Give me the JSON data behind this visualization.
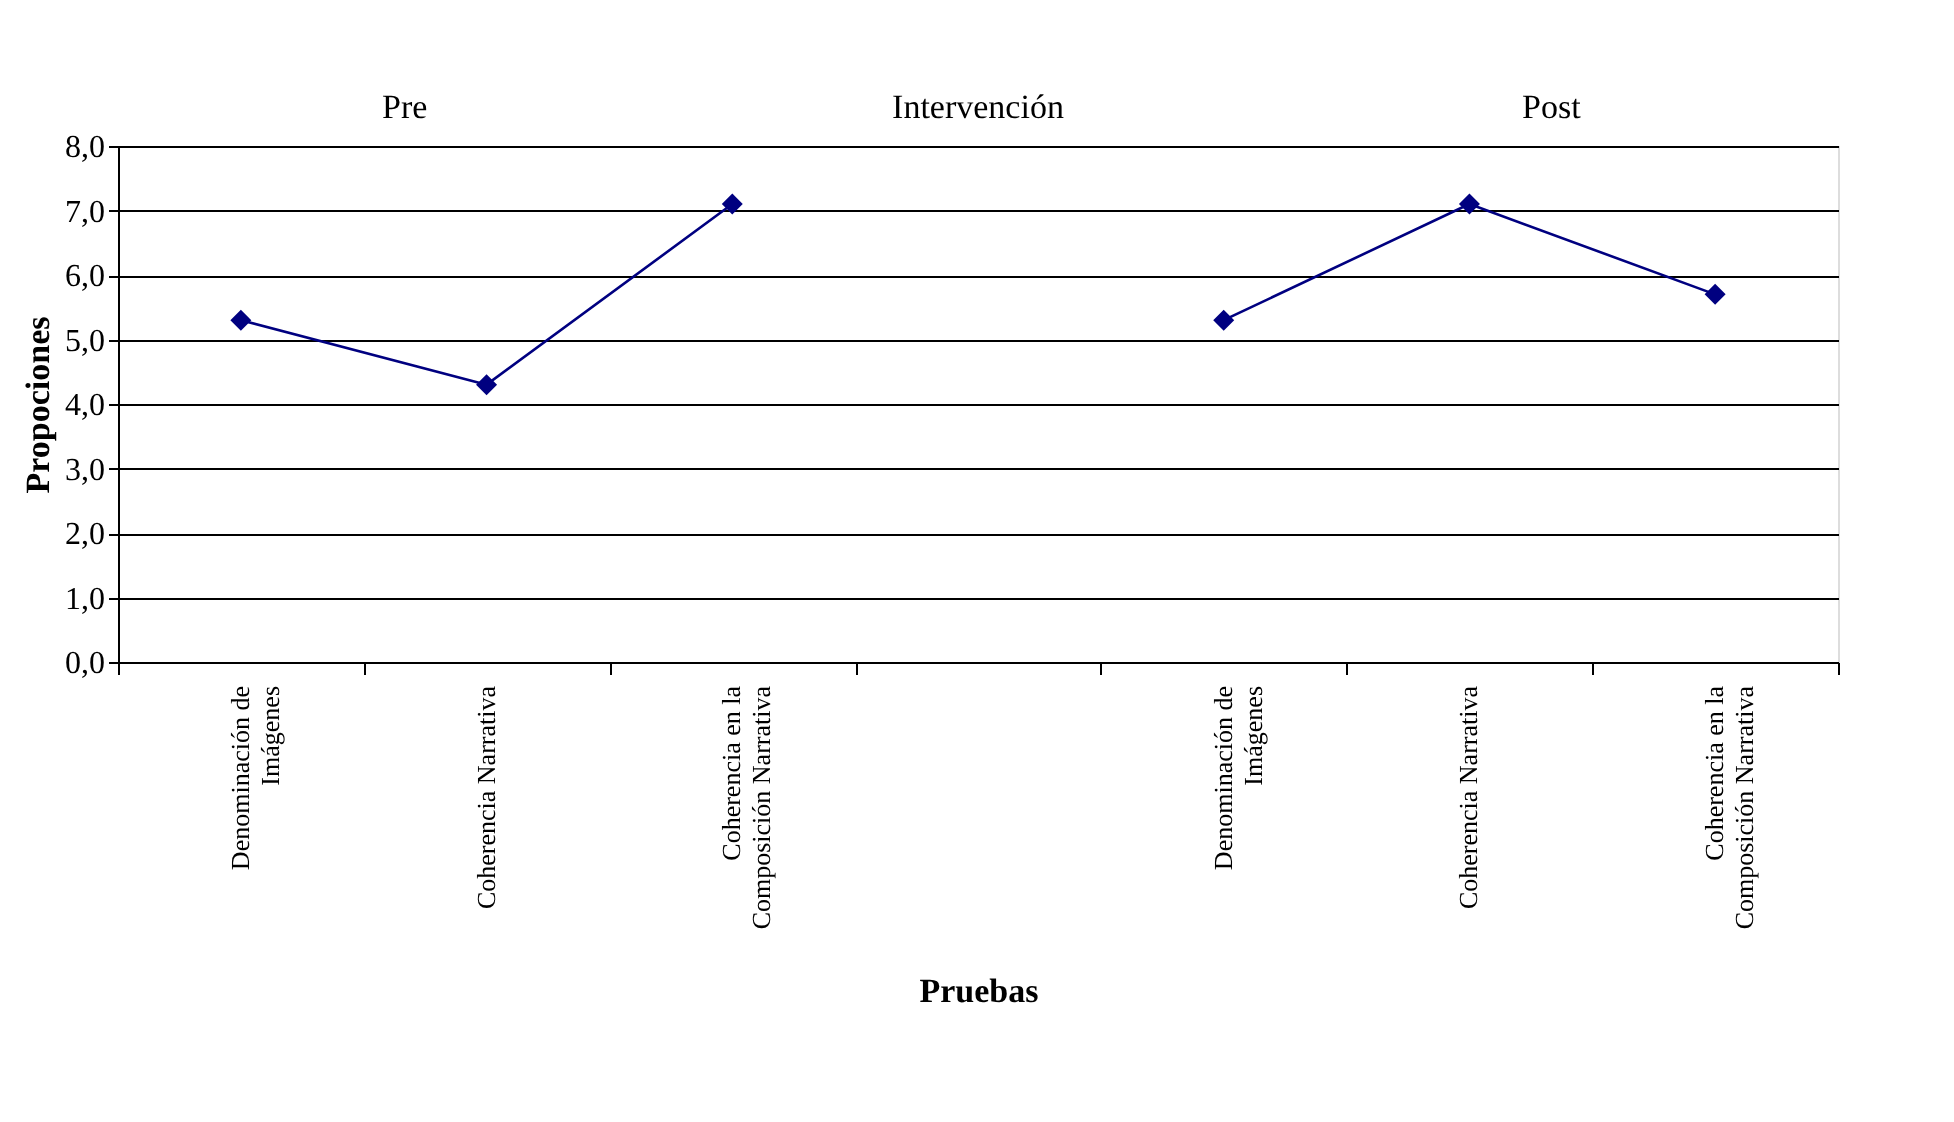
{
  "chart_data": {
    "type": "line",
    "categories": [
      "Denominación de Imágenes",
      "Coherencia Narrativa",
      "Coherencia en la Composición Narrativa",
      null,
      "Denominación de Imágenes",
      "Coherencia Narrativa",
      "Coherencia en la Composición Narrativa"
    ],
    "series": [
      {
        "color": "#000080",
        "values": [
          5.3,
          4.3,
          7.1,
          null,
          5.3,
          7.1,
          5.7
        ]
      }
    ],
    "xlabel": "Pruebas",
    "ylabel": "Propociones",
    "ylim": [
      0,
      8
    ],
    "yticks": [
      {
        "value": 0,
        "label": "0,0"
      },
      {
        "value": 1,
        "label": "1,0"
      },
      {
        "value": 2,
        "label": "2,0"
      },
      {
        "value": 3,
        "label": "3,0"
      },
      {
        "value": 4,
        "label": "4,0"
      },
      {
        "value": 5,
        "label": "5,0"
      },
      {
        "value": 6,
        "label": "6,0"
      },
      {
        "value": 7,
        "label": "7,0"
      },
      {
        "value": 8,
        "label": "8,0"
      }
    ],
    "annotations": [
      "Pre",
      "Intervención",
      "Post"
    ],
    "grid": "y",
    "marker": "diamond",
    "line_style": "solid"
  }
}
